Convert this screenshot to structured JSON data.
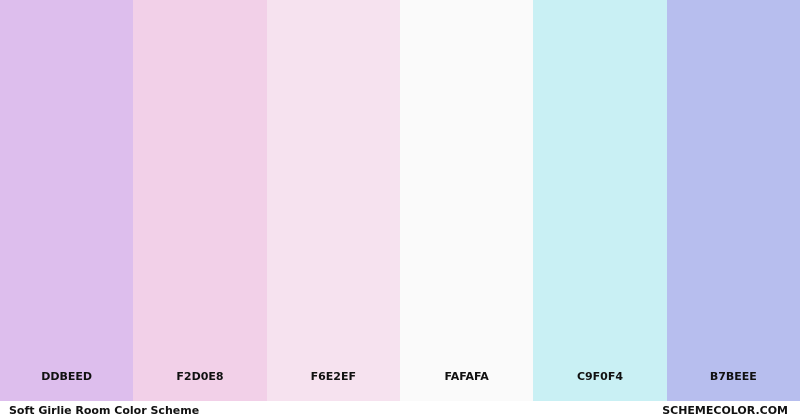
{
  "swatches": [
    {
      "hex": "DDBEED",
      "color": "#DDBEED"
    },
    {
      "hex": "F2D0E8",
      "color": "#F2D0E8"
    },
    {
      "hex": "F6E2EF",
      "color": "#F6E2EF"
    },
    {
      "hex": "FAFAFA",
      "color": "#FAFAFA"
    },
    {
      "hex": "C9F0F4",
      "color": "#C9F0F4"
    },
    {
      "hex": "B7BEEE",
      "color": "#B7BEEE"
    }
  ],
  "footer": {
    "title": "Soft Girlie Room Color Scheme",
    "site": "SCHEMECOLOR.COM"
  }
}
